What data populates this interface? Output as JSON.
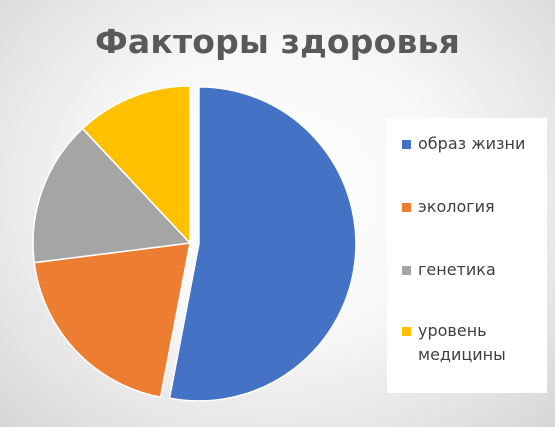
{
  "chart_data": {
    "type": "pie",
    "title": "Факторы здоровья",
    "categories": [
      "образ жизни",
      "экология",
      "генетика",
      "уровень медицины"
    ],
    "values": [
      53,
      20,
      15,
      12
    ],
    "exploded": [
      "образ жизни"
    ],
    "legend": "right",
    "colors": [
      "#4472C4",
      "#ED7D31",
      "#A5A5A5",
      "#FFC000"
    ]
  },
  "legend_items": [
    {
      "label": "образ жизни",
      "color": "#4472C4"
    },
    {
      "label": "экология",
      "color": "#ED7D31"
    },
    {
      "label": "генетика",
      "color": "#A5A5A5"
    },
    {
      "label": "уровень медицины",
      "color": "#FFC000"
    }
  ]
}
